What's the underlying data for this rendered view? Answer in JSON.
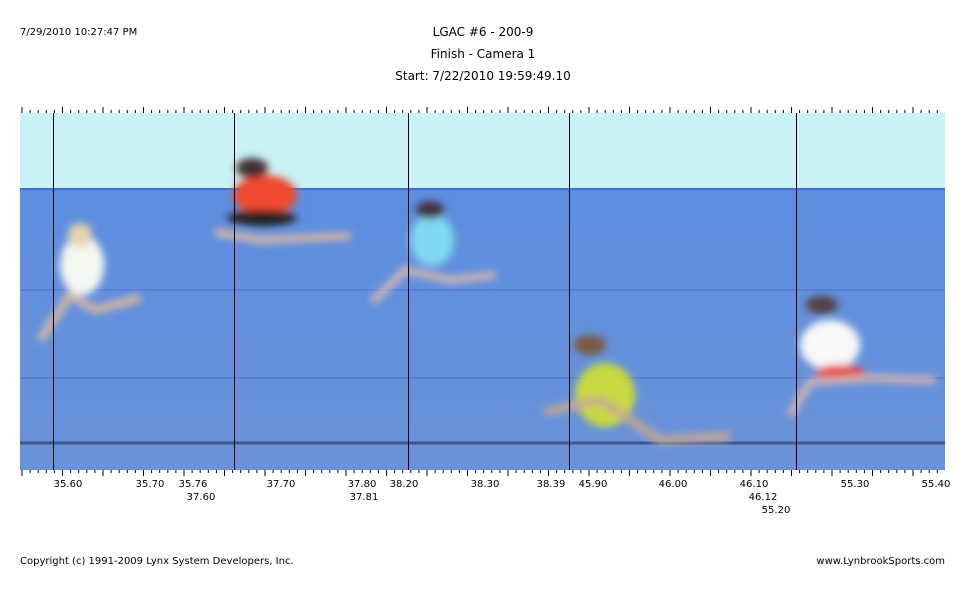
{
  "header": {
    "timestamp": "7/29/2010 10:27:47 PM",
    "title": "LGAC #6 - 200-9",
    "subtitle": "Finish - Camera 1",
    "start": "Start: 7/22/2010 19:59:49.10"
  },
  "time_labels": [
    "35.60",
    "35.70",
    "35.76",
    "37.60",
    "37.70",
    "37.80",
    "37.81",
    "38.20",
    "38.30",
    "38.39",
    "45.90",
    "46.00",
    "46.10",
    "46.12",
    "55.20",
    "55.30",
    "55.40"
  ],
  "footer": {
    "copyright": "Copyright (c) 1991-2009 Lynx System Developers, Inc.",
    "website": "www.LynbrookSports.com"
  }
}
